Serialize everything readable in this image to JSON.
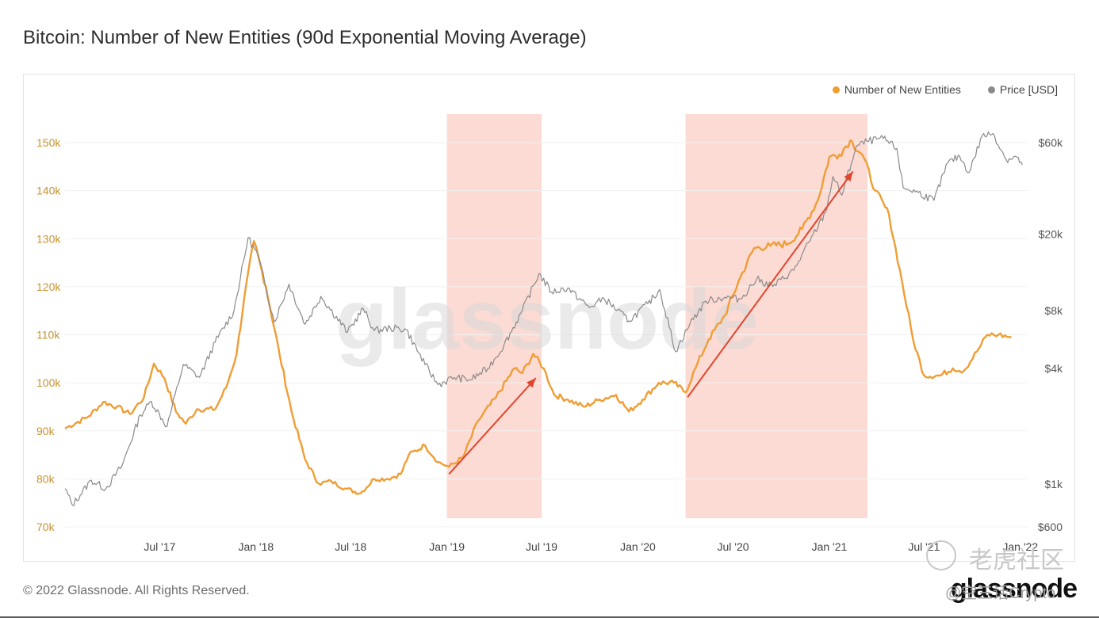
{
  "header": {
    "title": "Bitcoin: Number of New Entities (90d Exponential Moving Average)"
  },
  "legend": {
    "items": [
      {
        "label": "Number of New Entities",
        "color": "#f09d34"
      },
      {
        "label": "Price [USD]",
        "color": "#8a8a8a"
      }
    ]
  },
  "watermark": {
    "text": "glassnode"
  },
  "footer": {
    "copyright": "© 2022 Glassnode. All Rights Reserved.",
    "brand": "glassnode"
  },
  "overlay_watermarks": {
    "community": "老虎社区",
    "handle": "@空三话Crypto"
  },
  "chart_data": {
    "type": "line",
    "title": "Bitcoin: Number of New Entities (90d Exponential Moving Average)",
    "x_ticks": [
      "Jul '17",
      "Jan '18",
      "Jul '18",
      "Jan '19",
      "Jul '19",
      "Jan '20",
      "Jul '20",
      "Jan '21",
      "Jul '21",
      "Jan '22"
    ],
    "x_range": [
      "2017-01-01",
      "2022-01-15"
    ],
    "y_left": {
      "ticks": [
        "150k",
        "140k",
        "130k",
        "120k",
        "110k",
        "100k",
        "90k",
        "80k",
        "70k"
      ],
      "range": [
        70000,
        150000
      ],
      "color": "#c8922e"
    },
    "y_right": {
      "scale": "log",
      "ticks": [
        "$60k",
        "$20k",
        "$8k",
        "$4k",
        "$1k",
        "$600"
      ],
      "range": [
        600,
        60000
      ]
    },
    "grid": true,
    "legend_position": "top-right",
    "highlight_regions": [
      {
        "from": "2019-01-01",
        "to": "2019-07-01",
        "color": "#fcd9d2"
      },
      {
        "from": "2020-04-01",
        "to": "2021-03-15",
        "color": "#fcd9d2"
      }
    ],
    "arrows": [
      {
        "from": {
          "x": "2019-01-05",
          "y": 81000
        },
        "to": {
          "x": "2019-06-20",
          "y": 101000
        },
        "color": "#e0462e"
      },
      {
        "from": {
          "x": "2020-04-05",
          "y": 97000
        },
        "to": {
          "x": "2021-02-15",
          "y": 144000
        },
        "color": "#e0462e"
      }
    ],
    "series": [
      {
        "name": "Number of New Entities",
        "axis": "left",
        "color": "#f09d34",
        "points": [
          [
            "2017-01-01",
            90500
          ],
          [
            "2017-02-15",
            93000
          ],
          [
            "2017-03-15",
            96000
          ],
          [
            "2017-04-10",
            95000
          ],
          [
            "2017-05-05",
            93500
          ],
          [
            "2017-06-01",
            97000
          ],
          [
            "2017-06-20",
            104000
          ],
          [
            "2017-07-10",
            101000
          ],
          [
            "2017-08-01",
            94000
          ],
          [
            "2017-08-20",
            91500
          ],
          [
            "2017-09-10",
            94500
          ],
          [
            "2017-10-15",
            94500
          ],
          [
            "2017-11-05",
            99000
          ],
          [
            "2017-11-25",
            106000
          ],
          [
            "2017-12-10",
            118000
          ],
          [
            "2017-12-28",
            129500
          ],
          [
            "2018-01-20",
            120000
          ],
          [
            "2018-02-15",
            106000
          ],
          [
            "2018-03-10",
            94000
          ],
          [
            "2018-04-05",
            84000
          ],
          [
            "2018-05-01",
            79000
          ],
          [
            "2018-05-25",
            79500
          ],
          [
            "2018-06-20",
            78000
          ],
          [
            "2018-07-20",
            77000
          ],
          [
            "2018-08-15",
            80000
          ],
          [
            "2018-09-10",
            80000
          ],
          [
            "2018-10-05",
            81000
          ],
          [
            "2018-10-20",
            85000
          ],
          [
            "2018-11-20",
            87000
          ],
          [
            "2018-12-15",
            83500
          ],
          [
            "2019-01-05",
            82500
          ],
          [
            "2019-02-01",
            84500
          ],
          [
            "2019-03-01",
            92000
          ],
          [
            "2019-04-05",
            97000
          ],
          [
            "2019-05-10",
            103000
          ],
          [
            "2019-05-25",
            102000
          ],
          [
            "2019-06-15",
            106000
          ],
          [
            "2019-07-05",
            103000
          ],
          [
            "2019-07-25",
            97500
          ],
          [
            "2019-08-20",
            96500
          ],
          [
            "2019-09-20",
            95000
          ],
          [
            "2019-10-20",
            96500
          ],
          [
            "2019-11-20",
            97500
          ],
          [
            "2019-12-15",
            94000
          ],
          [
            "2020-01-10",
            96500
          ],
          [
            "2020-02-10",
            100000
          ],
          [
            "2020-03-10",
            100000
          ],
          [
            "2020-04-01",
            98000
          ],
          [
            "2020-04-20",
            103000
          ],
          [
            "2020-05-15",
            109000
          ],
          [
            "2020-06-15",
            114000
          ],
          [
            "2020-07-15",
            122000
          ],
          [
            "2020-08-10",
            128000
          ],
          [
            "2020-09-10",
            128500
          ],
          [
            "2020-10-15",
            129000
          ],
          [
            "2020-11-10",
            132000
          ],
          [
            "2020-12-10",
            138000
          ],
          [
            "2021-01-01",
            147000
          ],
          [
            "2021-01-20",
            147500
          ],
          [
            "2021-02-10",
            150500
          ],
          [
            "2021-03-05",
            147500
          ],
          [
            "2021-03-30",
            140000
          ],
          [
            "2021-04-25",
            135000
          ],
          [
            "2021-05-20",
            121000
          ],
          [
            "2021-06-10",
            109000
          ],
          [
            "2021-07-01",
            101500
          ],
          [
            "2021-08-01",
            101500
          ],
          [
            "2021-08-25",
            103000
          ],
          [
            "2021-09-15",
            102500
          ],
          [
            "2021-10-10",
            106500
          ],
          [
            "2021-10-30",
            110000
          ],
          [
            "2021-11-20",
            110000
          ],
          [
            "2021-12-15",
            109500
          ]
        ]
      },
      {
        "name": "Price [USD]",
        "axis": "right",
        "color": "#8a8a8a",
        "points": [
          [
            "2017-01-01",
            950
          ],
          [
            "2017-01-15",
            780
          ],
          [
            "2017-02-20",
            1050
          ],
          [
            "2017-03-20",
            950
          ],
          [
            "2017-04-20",
            1250
          ],
          [
            "2017-05-25",
            2300
          ],
          [
            "2017-06-15",
            2700
          ],
          [
            "2017-07-15",
            2000
          ],
          [
            "2017-08-15",
            4200
          ],
          [
            "2017-09-15",
            3600
          ],
          [
            "2017-10-15",
            5500
          ],
          [
            "2017-11-20",
            8000
          ],
          [
            "2017-12-17",
            19200
          ],
          [
            "2018-01-05",
            15500
          ],
          [
            "2018-02-05",
            7000
          ],
          [
            "2018-03-05",
            11000
          ],
          [
            "2018-04-05",
            6800
          ],
          [
            "2018-05-05",
            9500
          ],
          [
            "2018-06-25",
            6200
          ],
          [
            "2018-07-25",
            8200
          ],
          [
            "2018-08-15",
            6300
          ],
          [
            "2018-09-15",
            6500
          ],
          [
            "2018-10-15",
            6400
          ],
          [
            "2018-11-20",
            4200
          ],
          [
            "2018-12-15",
            3300
          ],
          [
            "2019-01-15",
            3600
          ],
          [
            "2019-02-15",
            3500
          ],
          [
            "2019-03-20",
            4000
          ],
          [
            "2019-04-20",
            5300
          ],
          [
            "2019-05-25",
            8000
          ],
          [
            "2019-06-26",
            12500
          ],
          [
            "2019-07-20",
            10000
          ],
          [
            "2019-08-20",
            10500
          ],
          [
            "2019-09-30",
            8300
          ],
          [
            "2019-10-28",
            9300
          ],
          [
            "2019-12-15",
            7100
          ],
          [
            "2020-01-20",
            8700
          ],
          [
            "2020-02-12",
            10300
          ],
          [
            "2020-03-13",
            4900
          ],
          [
            "2020-04-10",
            6900
          ],
          [
            "2020-05-10",
            9000
          ],
          [
            "2020-06-15",
            9400
          ],
          [
            "2020-07-15",
            9200
          ],
          [
            "2020-08-15",
            11700
          ],
          [
            "2020-09-15",
            10700
          ],
          [
            "2020-10-25",
            13000
          ],
          [
            "2020-11-25",
            18500
          ],
          [
            "2020-12-25",
            26000
          ],
          [
            "2021-01-08",
            40000
          ],
          [
            "2021-01-25",
            32000
          ],
          [
            "2021-02-21",
            57000
          ],
          [
            "2021-03-14",
            61000
          ],
          [
            "2021-04-14",
            63000
          ],
          [
            "2021-05-10",
            56000
          ],
          [
            "2021-05-22",
            35000
          ],
          [
            "2021-06-20",
            33000
          ],
          [
            "2021-07-20",
            30000
          ],
          [
            "2021-08-15",
            47000
          ],
          [
            "2021-09-07",
            51000
          ],
          [
            "2021-09-25",
            42000
          ],
          [
            "2021-10-20",
            65000
          ],
          [
            "2021-11-10",
            67000
          ],
          [
            "2021-12-05",
            49000
          ],
          [
            "2021-12-25",
            50500
          ],
          [
            "2022-01-05",
            46000
          ]
        ]
      }
    ]
  }
}
